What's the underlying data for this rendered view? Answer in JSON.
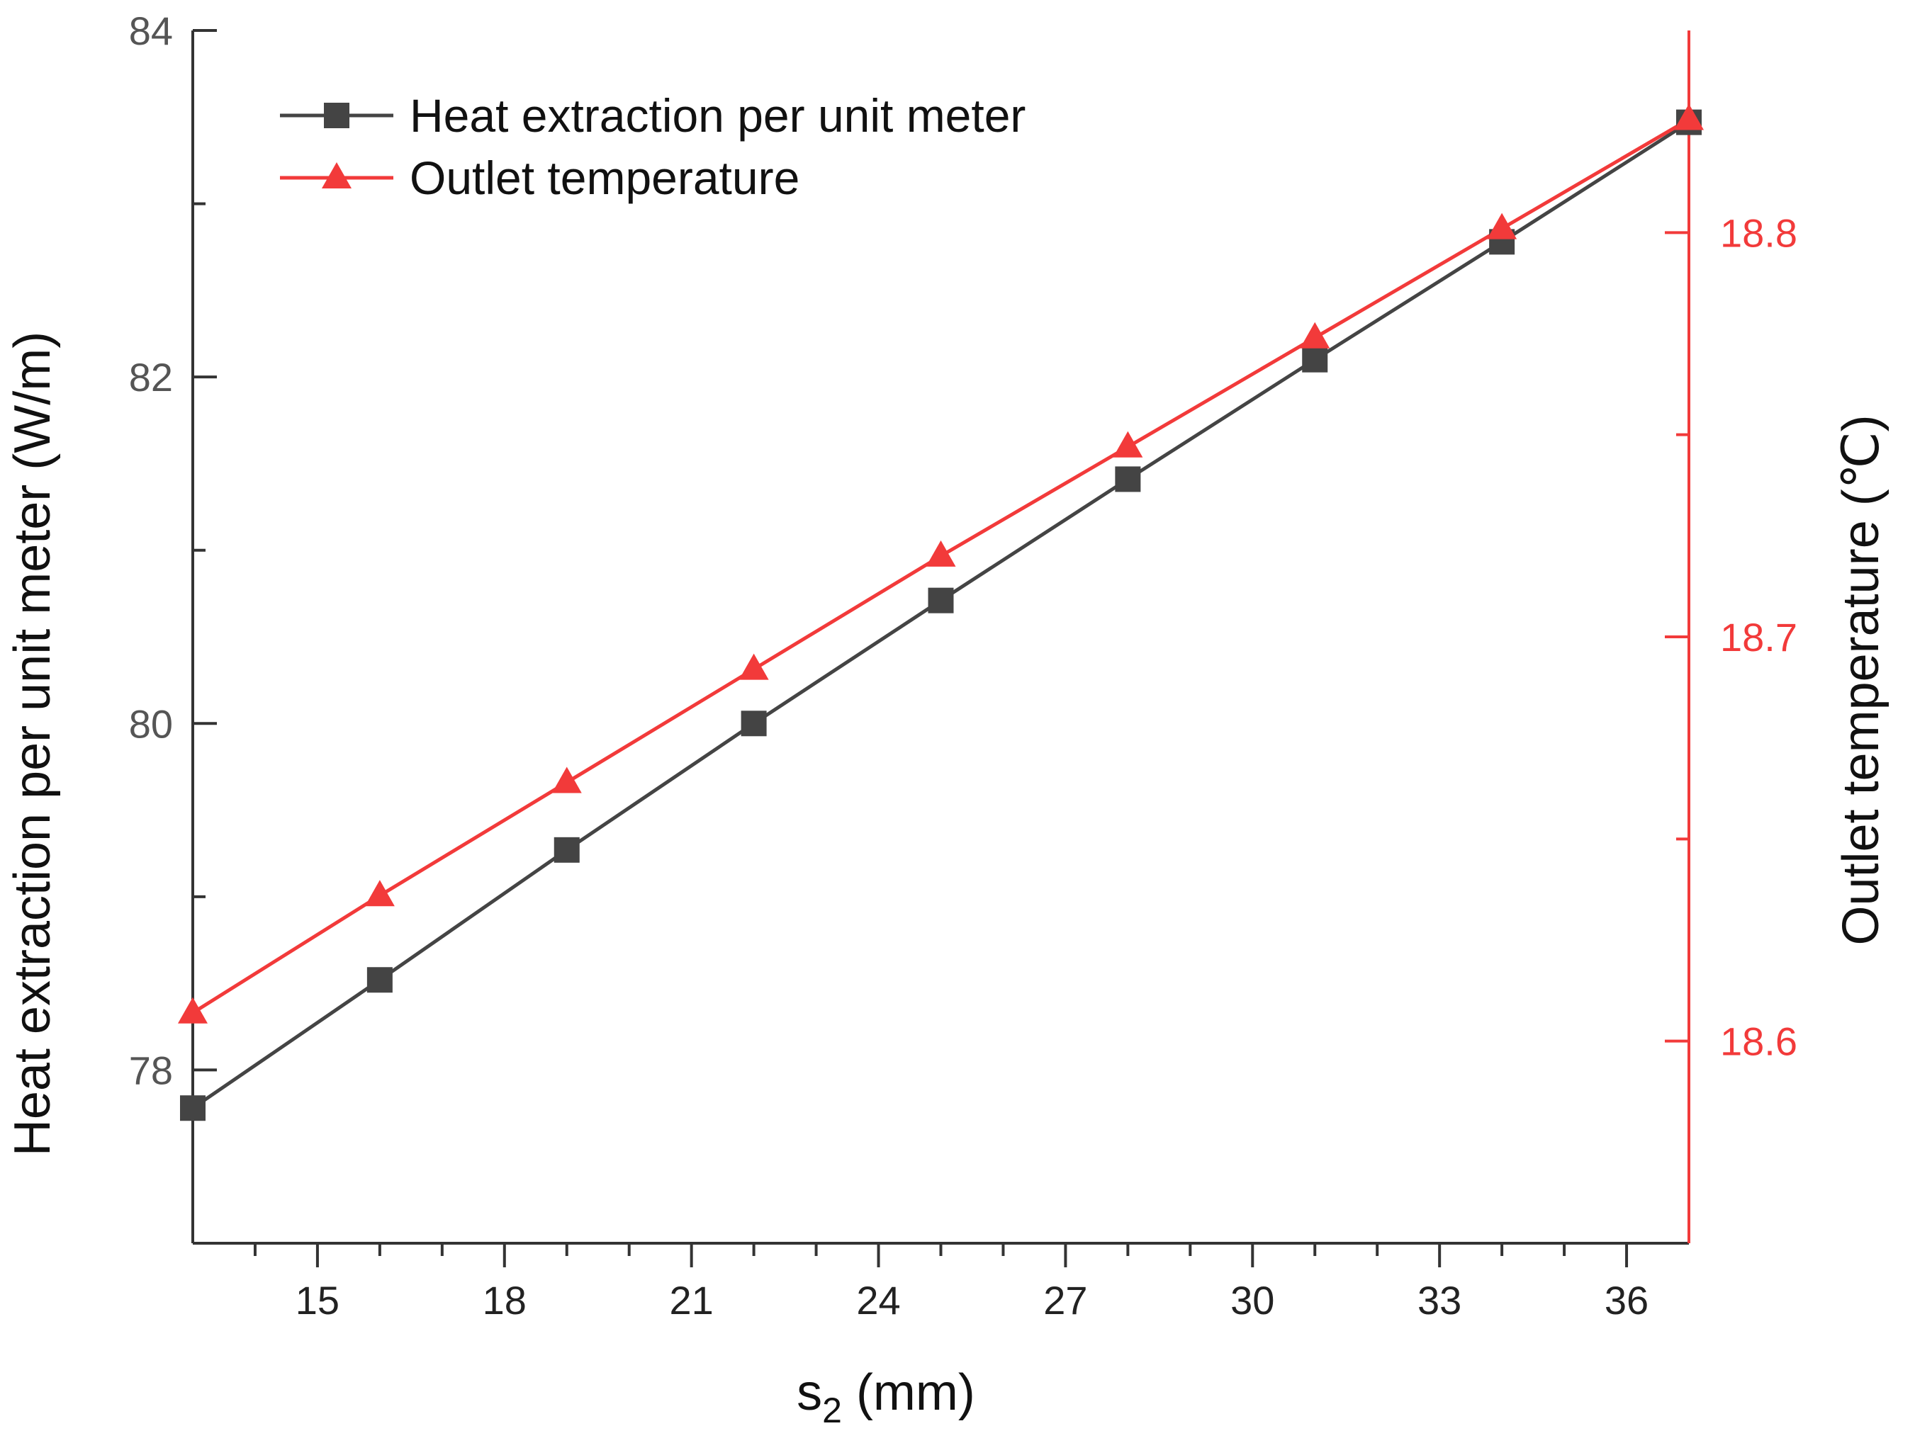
{
  "chart_data": {
    "type": "line",
    "xlabel_main": "s",
    "xlabel_sub": "2",
    "xlabel_rest": " (mm)",
    "ylabel_left": "Heat extraction per unit meter (W/m)",
    "ylabel_right": "Outlet temperature (℃)",
    "xlim": [
      13,
      37
    ],
    "ylim_left": [
      77,
      84
    ],
    "ylim_right": [
      18.55,
      18.85
    ],
    "x_ticks": [
      "15",
      "18",
      "21",
      "24",
      "27",
      "30",
      "33",
      "36"
    ],
    "y_left_ticks": [
      "78",
      "80",
      "82",
      "84"
    ],
    "y_right_ticks": [
      "18.6",
      "18.7",
      "18.8"
    ],
    "x": [
      13,
      16,
      19,
      22,
      25,
      28,
      31,
      34,
      37
    ],
    "series": [
      {
        "name": "Heat extraction per unit meter",
        "axis": "left",
        "color": "#444444",
        "marker": "square",
        "values": [
          77.78,
          78.52,
          79.27,
          80.0,
          80.71,
          81.41,
          82.1,
          82.78,
          83.47
        ]
      },
      {
        "name": "Outlet temperature",
        "axis": "right",
        "color": "#f23a3a",
        "marker": "triangle",
        "values": [
          18.607,
          18.636,
          18.664,
          18.692,
          18.72,
          18.747,
          18.774,
          18.801,
          18.828
        ]
      }
    ],
    "legend_position": "top-left",
    "grid": false
  }
}
